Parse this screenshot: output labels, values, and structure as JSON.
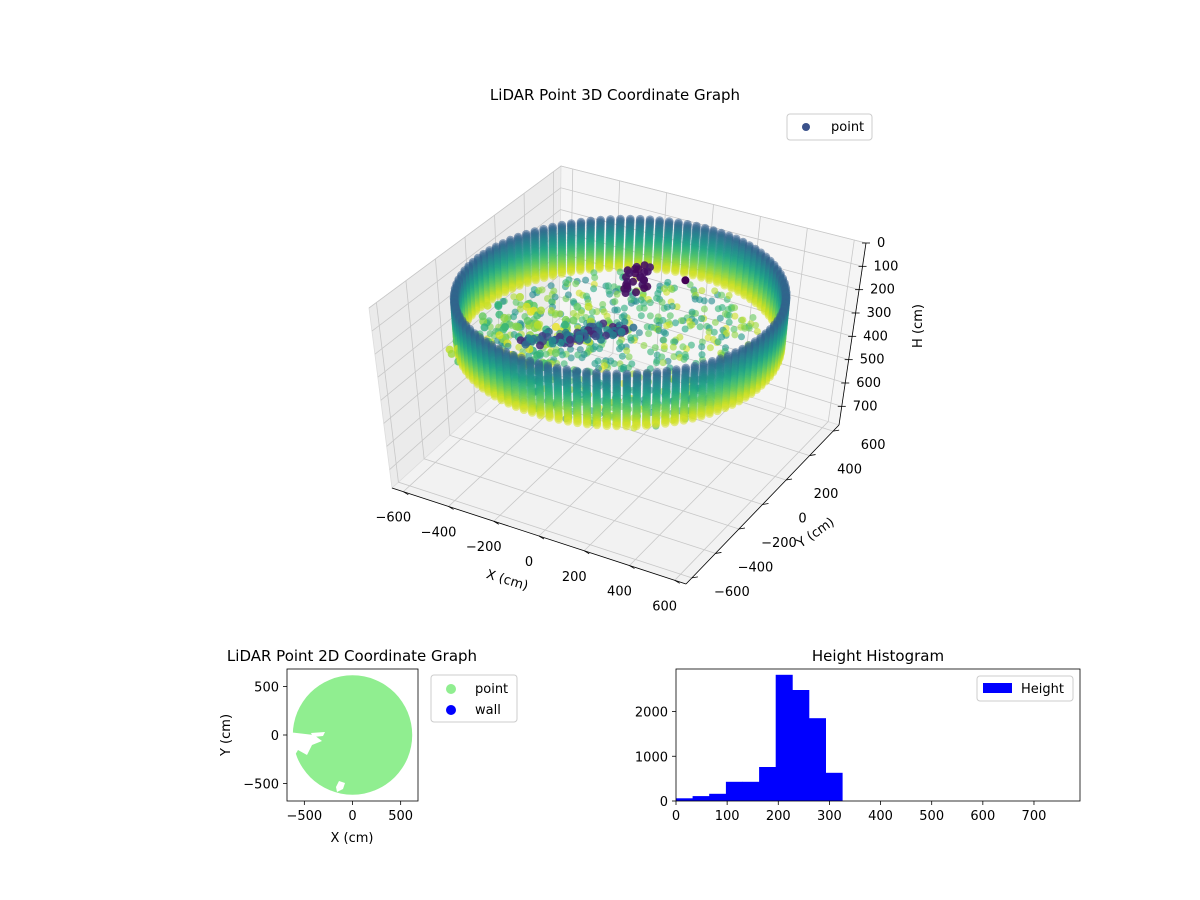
{
  "chart_data": [
    {
      "type": "scatter3d",
      "title": "LiDAR Point 3D Coordinate Graph",
      "xlabel": "X (cm)",
      "ylabel": "Y (cm)",
      "zlabel": "H (cm)",
      "xlim": [
        -650,
        650
      ],
      "ylim": [
        -650,
        650
      ],
      "zlim": [
        780,
        0
      ],
      "xticks": [
        "−600",
        "−400",
        "−200",
        "0",
        "200",
        "400",
        "600"
      ],
      "yticks": [
        "600",
        "400",
        "200",
        "0",
        "−200",
        "−400",
        "−600"
      ],
      "zticks": [
        "0",
        "100",
        "200",
        "300",
        "400",
        "500",
        "600",
        "700"
      ],
      "z_inverted": true,
      "colormap": "viridis",
      "legend": [
        {
          "name": "point",
          "color": "#3b528b"
        }
      ],
      "legend_position": "top-right",
      "wall": {
        "shape": "cylinder",
        "radius": 600,
        "height_range": [
          80,
          300
        ]
      },
      "grid": true
    },
    {
      "type": "scatter",
      "title": "LiDAR Point 2D Coordinate Graph",
      "xlabel": "X (cm)",
      "ylabel": "Y (cm)",
      "xlim": [
        -680,
        680
      ],
      "ylim": [
        -680,
        680
      ],
      "xticks": [
        "−500",
        "0",
        "500"
      ],
      "yticks": [
        "500",
        "0",
        "−500"
      ],
      "series": [
        {
          "name": "point",
          "color": "#90ee90",
          "shape": "disc",
          "radius": 620
        },
        {
          "name": "wall",
          "color": "#0000ff"
        }
      ],
      "legend_position": "outside-right"
    },
    {
      "type": "bar",
      "title": "Height Histogram",
      "xlabel": "",
      "ylabel": "",
      "xlim": [
        0,
        790
      ],
      "ylim": [
        0,
        2950
      ],
      "xticks": [
        "0",
        "100",
        "200",
        "300",
        "400",
        "500",
        "600",
        "700"
      ],
      "yticks": [
        "0",
        "1000",
        "2000"
      ],
      "bin_width": 32.5,
      "bin_starts": [
        0,
        32.5,
        65,
        97.5,
        130,
        162.5,
        195,
        227.5,
        260,
        292.5
      ],
      "values": [
        60,
        110,
        160,
        430,
        430,
        760,
        2820,
        2480,
        1850,
        630
      ],
      "color": "#0000ff",
      "legend": [
        {
          "name": "Height",
          "color": "#0000ff"
        }
      ],
      "legend_position": "top-right"
    }
  ]
}
